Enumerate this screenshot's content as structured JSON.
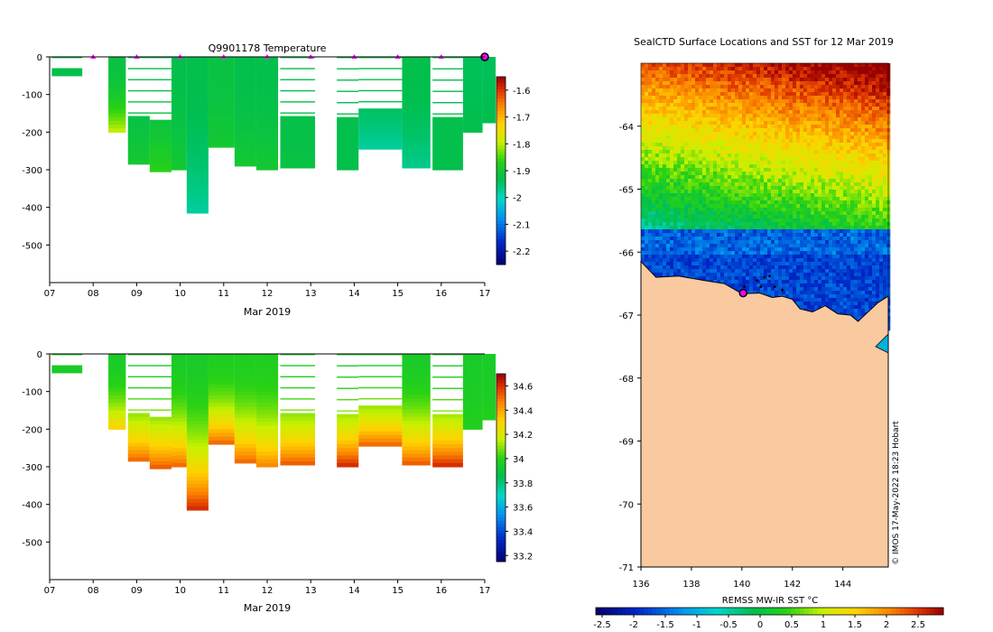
{
  "colors": {
    "bg": "#ffffff",
    "axis": "#000000",
    "land": "#f9c9a0",
    "marker": "#ff00ff",
    "coast": "#000000"
  },
  "chart_data": [
    {
      "type": "heatmap",
      "title": "Q9901178  Temperature",
      "xlabel": "Mar 2019",
      "ylabel": "",
      "x_ticks": [
        "07",
        "08",
        "09",
        "10",
        "11",
        "12",
        "13",
        "14",
        "15",
        "16",
        "17"
      ],
      "xlim": [
        7,
        17
      ],
      "ylim": [
        -600,
        0
      ],
      "y_ticks": [
        0,
        -100,
        -200,
        -300,
        -400,
        -500
      ],
      "colorbar": {
        "ticks": [
          -1.6,
          -1.7,
          -1.8,
          -1.9,
          -2,
          -2.1,
          -2.2
        ],
        "tick_labels": [
          "-1.6",
          "-1.7",
          "-1.8",
          "-1.9",
          "-2",
          "-2.1",
          "-2.2"
        ],
        "range": [
          -2.25,
          -1.55
        ]
      },
      "surface_markers_day": [
        8,
        9,
        10,
        11,
        12,
        13,
        14,
        15,
        16
      ],
      "current_marker_day": 17,
      "profiles": [
        {
          "day": 7.05,
          "width": 0.7,
          "max_depth": 50,
          "sparse": true,
          "value": -1.93
        },
        {
          "day": 8.35,
          "width": 0.4,
          "max_depth": 200,
          "sparse": false,
          "value": -1.92,
          "deep_value": -1.8
        },
        {
          "day": 8.8,
          "width": 0.5,
          "max_depth": 285,
          "sparse": true,
          "value": -1.93,
          "deep_value": -1.9
        },
        {
          "day": 9.3,
          "width": 0.5,
          "max_depth": 305,
          "sparse": true,
          "value": -1.93,
          "deep_value": -1.87
        },
        {
          "day": 9.8,
          "width": 0.35,
          "max_depth": 300,
          "sparse": false,
          "value": -1.93,
          "deep_value": -1.9
        },
        {
          "day": 10.15,
          "width": 0.5,
          "max_depth": 415,
          "sparse": false,
          "value": -1.93,
          "deep_value": -1.98
        },
        {
          "day": 10.65,
          "width": 0.6,
          "max_depth": 240,
          "sparse": false,
          "value": -1.92,
          "deep_value": -1.9
        },
        {
          "day": 11.25,
          "width": 0.5,
          "max_depth": 290,
          "sparse": false,
          "value": -1.93,
          "deep_value": -1.9
        },
        {
          "day": 11.75,
          "width": 0.5,
          "max_depth": 300,
          "sparse": false,
          "value": -1.93,
          "deep_value": -1.9
        },
        {
          "day": 12.3,
          "width": 0.8,
          "max_depth": 295,
          "sparse": true,
          "value": -1.93,
          "deep_value": -1.92
        },
        {
          "day": 13.6,
          "width": 0.5,
          "max_depth": 300,
          "sparse": true,
          "value": -1.93,
          "deep_value": -1.93
        },
        {
          "day": 14.1,
          "width": 1.0,
          "max_depth": 245,
          "sparse": true,
          "value": -1.93,
          "deep_value": -1.98
        },
        {
          "day": 15.1,
          "width": 0.65,
          "max_depth": 295,
          "sparse": false,
          "value": -1.93,
          "deep_value": -1.97
        },
        {
          "day": 15.8,
          "width": 0.7,
          "max_depth": 300,
          "sparse": true,
          "value": -1.93,
          "deep_value": -1.93
        },
        {
          "day": 16.5,
          "width": 0.45,
          "max_depth": 200,
          "sparse": false,
          "value": -1.94,
          "deep_value": -1.93
        },
        {
          "day": 16.95,
          "width": 0.3,
          "max_depth": 175,
          "sparse": false,
          "value": -1.94,
          "deep_value": -1.93
        }
      ]
    },
    {
      "type": "heatmap",
      "title": "",
      "xlabel": "Mar 2019",
      "x_ticks": [
        "07",
        "08",
        "09",
        "10",
        "11",
        "12",
        "13",
        "14",
        "15",
        "16",
        "17"
      ],
      "xlim": [
        7,
        17
      ],
      "ylim": [
        -600,
        0
      ],
      "y_ticks": [
        0,
        -100,
        -200,
        -300,
        -400,
        -500
      ],
      "colorbar": {
        "ticks": [
          34.6,
          34.4,
          34.2,
          34,
          33.8,
          33.6,
          33.4,
          33.2
        ],
        "tick_labels": [
          "34.6",
          "34.4",
          "34.2",
          "34",
          "33.8",
          "33.6",
          "33.4",
          "33.2"
        ],
        "range": [
          33.15,
          34.7
        ]
      },
      "profiles": [
        {
          "day": 7.05,
          "width": 0.7,
          "max_depth": 50,
          "sparse": true,
          "value": 33.95
        },
        {
          "day": 8.35,
          "width": 0.4,
          "max_depth": 200,
          "sparse": false,
          "value": 33.95,
          "deep_value": 34.3
        },
        {
          "day": 8.8,
          "width": 0.5,
          "max_depth": 285,
          "sparse": true,
          "value": 33.95,
          "deep_value": 34.5
        },
        {
          "day": 9.3,
          "width": 0.5,
          "max_depth": 305,
          "sparse": true,
          "value": 33.95,
          "deep_value": 34.52
        },
        {
          "day": 9.8,
          "width": 0.35,
          "max_depth": 300,
          "sparse": false,
          "value": 33.95,
          "deep_value": 34.5
        },
        {
          "day": 10.15,
          "width": 0.5,
          "max_depth": 415,
          "sparse": false,
          "value": 33.95,
          "deep_value": 34.6
        },
        {
          "day": 10.65,
          "width": 0.6,
          "max_depth": 240,
          "sparse": false,
          "value": 33.97,
          "deep_value": 34.5
        },
        {
          "day": 11.25,
          "width": 0.5,
          "max_depth": 290,
          "sparse": false,
          "value": 33.97,
          "deep_value": 34.5
        },
        {
          "day": 11.75,
          "width": 0.5,
          "max_depth": 300,
          "sparse": false,
          "value": 33.97,
          "deep_value": 34.45
        },
        {
          "day": 12.3,
          "width": 0.8,
          "max_depth": 295,
          "sparse": true,
          "value": 33.95,
          "deep_value": 34.52
        },
        {
          "day": 13.6,
          "width": 0.5,
          "max_depth": 300,
          "sparse": true,
          "value": 33.95,
          "deep_value": 34.6
        },
        {
          "day": 14.1,
          "width": 1.0,
          "max_depth": 245,
          "sparse": true,
          "value": 33.95,
          "deep_value": 34.5
        },
        {
          "day": 15.1,
          "width": 0.65,
          "max_depth": 295,
          "sparse": false,
          "value": 33.95,
          "deep_value": 34.52
        },
        {
          "day": 15.8,
          "width": 0.7,
          "max_depth": 300,
          "sparse": true,
          "value": 33.95,
          "deep_value": 34.6
        },
        {
          "day": 16.5,
          "width": 0.45,
          "max_depth": 200,
          "sparse": false,
          "value": 33.95,
          "deep_value": 33.98
        },
        {
          "day": 16.95,
          "width": 0.3,
          "max_depth": 175,
          "sparse": false,
          "value": 33.95,
          "deep_value": 33.98
        }
      ]
    },
    {
      "type": "heatmap",
      "title": "SealCTD Surface Locations and SST for 12 Mar 2019",
      "xlabel": "REMSS MW-IR SST °C",
      "x_ticks": [
        "136",
        "138",
        "140",
        "142",
        "144"
      ],
      "x_tick_values": [
        136,
        138,
        140,
        142,
        144
      ],
      "y_ticks": [
        "-64",
        "-65",
        "-66",
        "-67",
        "-68",
        "-69",
        "-70",
        "-71"
      ],
      "y_tick_values": [
        -64,
        -65,
        -66,
        -67,
        -68,
        -69,
        -70,
        -71
      ],
      "lon_range": [
        136,
        145.8
      ],
      "lat_range": [
        -71,
        -63
      ],
      "colorbar": {
        "ticks": [
          -2.5,
          -2,
          -1.5,
          -1,
          -0.5,
          0,
          0.5,
          1,
          1.5,
          2,
          2.5
        ],
        "tick_labels": [
          "-2.5",
          "-2",
          "-1.5",
          "-1",
          "-0.5",
          "0",
          "0.5",
          "1",
          "1.5",
          "2",
          "2.5"
        ],
        "range": [
          -2.6,
          2.9
        ]
      },
      "surface_locations": [
        {
          "lon": 140.1,
          "lat": -66.55
        },
        {
          "lon": 140.6,
          "lat": -66.45
        },
        {
          "lon": 140.9,
          "lat": -66.4
        },
        {
          "lon": 141.1,
          "lat": -66.38
        },
        {
          "lon": 140.75,
          "lat": -66.55
        },
        {
          "lon": 141.3,
          "lat": -66.55
        },
        {
          "lon": 141.6,
          "lat": -66.6
        }
      ],
      "current_location": {
        "lon": 140.05,
        "lat": -66.65
      },
      "credit": "© IMOS 17-May-2022 18:23 Hobart"
    }
  ]
}
